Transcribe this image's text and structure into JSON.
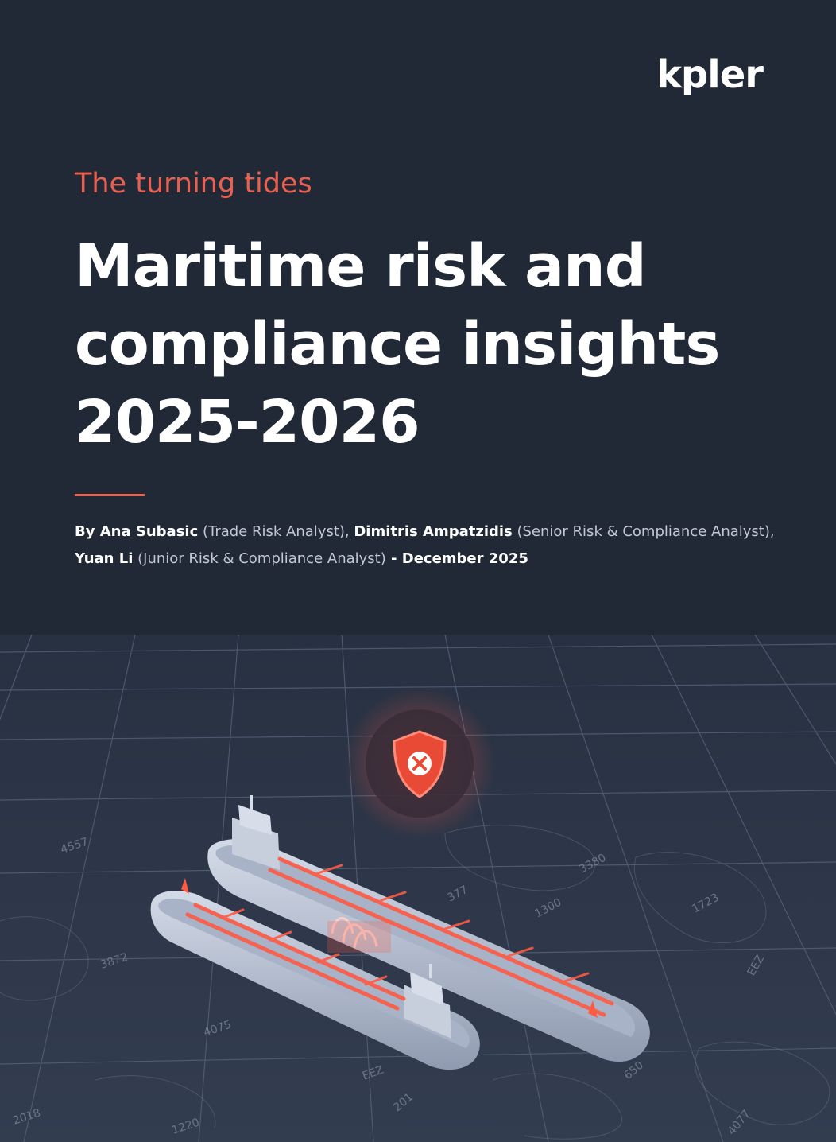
{
  "brand": {
    "logo_text": "kpler"
  },
  "cover": {
    "kicker": "The turning tides",
    "title_lines": [
      "Maritime risk and",
      "compliance insights",
      "2025-2026"
    ]
  },
  "byline": {
    "prefix": "By ",
    "authors": [
      {
        "name": "Ana Subasic",
        "role": " (Trade Risk Analyst)",
        "sep": ", "
      },
      {
        "name": "Dimitris Ampatzidis",
        "role": " (Senior Risk & Compliance Analyst)",
        "sep": ","
      },
      {
        "name": "Yuan Li",
        "role": " (Junior Risk & Compliance Analyst)",
        "sep": ""
      }
    ],
    "date_sep": " - ",
    "date": "December 2025"
  },
  "hero": {
    "depth_labels": [
      "4557",
      "3872",
      "4075",
      "1220",
      "2018",
      "1300",
      "1723",
      "3380",
      "377",
      "650",
      "4077",
      "201",
      "EEZ",
      "EEZ"
    ],
    "colors": {
      "sea": "#2c3546",
      "grid": "#5b6679",
      "hull": "#b9c3d6",
      "deck": "#9aa6bd",
      "alert": "#ff5a44"
    },
    "alert_icon": "shield-x-icon"
  }
}
